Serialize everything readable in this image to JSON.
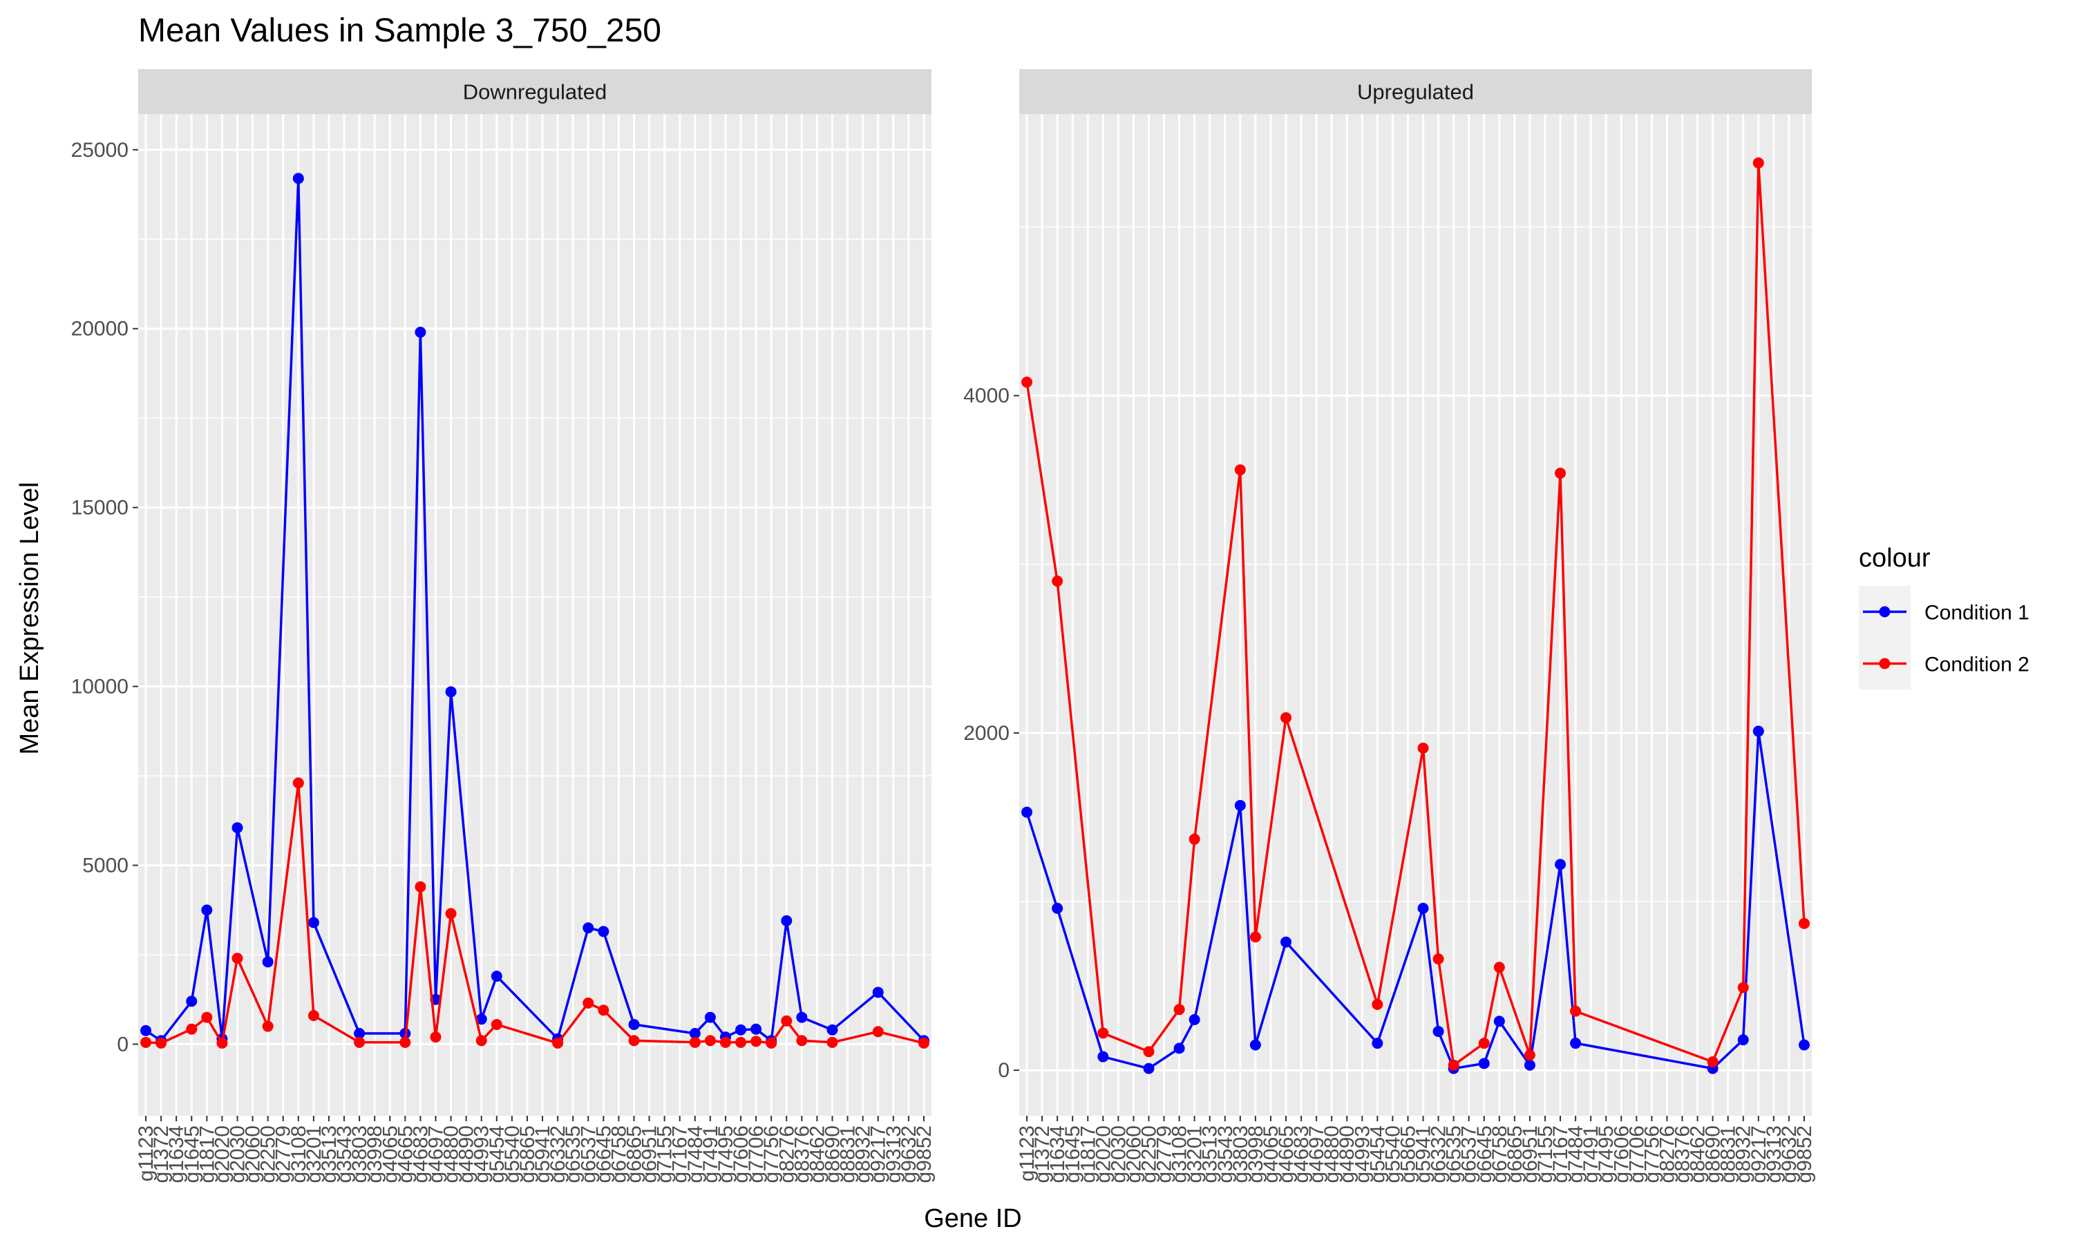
{
  "chart_data": {
    "type": "line",
    "title": "Mean Values in Sample 3_750_250",
    "xlabel": "Gene ID",
    "ylabel": "Mean Expression Level",
    "legend": {
      "title": "colour",
      "placement": "right",
      "entries": [
        {
          "name": "Condition 1",
          "color": "#0000FF"
        },
        {
          "name": "Condition 2",
          "color": "#FF0000"
        }
      ]
    },
    "categories": [
      "g1123",
      "g1372",
      "g1634",
      "g1645",
      "g1817",
      "g2020",
      "g2030",
      "g2060",
      "g2250",
      "g2779",
      "g3108",
      "g3201",
      "g3513",
      "g3543",
      "g3803",
      "g3998",
      "g4065",
      "g4665",
      "g4683",
      "g4697",
      "g4880",
      "g4890",
      "g4993",
      "g5454",
      "g5540",
      "g5865",
      "g5941",
      "g6332",
      "g6535",
      "g6537",
      "g6645",
      "g6758",
      "g6865",
      "g6951",
      "g7155",
      "g7167",
      "g7484",
      "g7491",
      "g7495",
      "g7606",
      "g7706",
      "g7756",
      "g8276",
      "g8376",
      "g8462",
      "g8690",
      "g8831",
      "g8932",
      "g9217",
      "g9313",
      "g9632",
      "g9852"
    ],
    "panels": [
      {
        "strip": "Downregulated",
        "ylim": [
          -2000,
          26000
        ],
        "yticks": [
          0,
          5000,
          10000,
          15000,
          20000,
          25000
        ],
        "series": [
          {
            "name": "Condition 1",
            "color": "#0000FF",
            "points": [
              [
                "g1123",
                380
              ],
              [
                "g1372",
                100
              ],
              [
                "g1645",
                1200
              ],
              [
                "g1817",
                3750
              ],
              [
                "g2020",
                150
              ],
              [
                "g2030",
                6050
              ],
              [
                "g2250",
                2300
              ],
              [
                "g3108",
                24200
              ],
              [
                "g3201",
                3400
              ],
              [
                "g3803",
                300
              ],
              [
                "g4665",
                300
              ],
              [
                "g4683",
                19900
              ],
              [
                "g4697",
                1250
              ],
              [
                "g4880",
                9850
              ],
              [
                "g4993",
                700
              ],
              [
                "g5454",
                1900
              ],
              [
                "g6332",
                150
              ],
              [
                "g6537",
                3250
              ],
              [
                "g6645",
                3150
              ],
              [
                "g6865",
                550
              ],
              [
                "g7484",
                300
              ],
              [
                "g7491",
                750
              ],
              [
                "g7495",
                200
              ],
              [
                "g7606",
                400
              ],
              [
                "g7706",
                420
              ],
              [
                "g7756",
                100
              ],
              [
                "g8276",
                3450
              ],
              [
                "g8376",
                750
              ],
              [
                "g8690",
                400
              ],
              [
                "g9217",
                1450
              ],
              [
                "g9852",
                100
              ]
            ]
          },
          {
            "name": "Condition 2",
            "color": "#FF0000",
            "points": [
              [
                "g1123",
                50
              ],
              [
                "g1372",
                30
              ],
              [
                "g1645",
                420
              ],
              [
                "g1817",
                750
              ],
              [
                "g2020",
                30
              ],
              [
                "g2030",
                2400
              ],
              [
                "g2250",
                500
              ],
              [
                "g3108",
                7300
              ],
              [
                "g3201",
                800
              ],
              [
                "g3803",
                50
              ],
              [
                "g4665",
                50
              ],
              [
                "g4683",
                4400
              ],
              [
                "g4697",
                200
              ],
              [
                "g4880",
                3650
              ],
              [
                "g4993",
                100
              ],
              [
                "g5454",
                550
              ],
              [
                "g6332",
                30
              ],
              [
                "g6537",
                1150
              ],
              [
                "g6645",
                950
              ],
              [
                "g6865",
                100
              ],
              [
                "g7484",
                50
              ],
              [
                "g7491",
                100
              ],
              [
                "g7495",
                50
              ],
              [
                "g7606",
                50
              ],
              [
                "g7706",
                80
              ],
              [
                "g7756",
                30
              ],
              [
                "g8276",
                650
              ],
              [
                "g8376",
                100
              ],
              [
                "g8690",
                50
              ],
              [
                "g9217",
                350
              ],
              [
                "g9852",
                30
              ]
            ]
          }
        ]
      },
      {
        "strip": "Upregulated",
        "ylim": [
          -270,
          5670
        ],
        "yticks": [
          0,
          2000,
          4000
        ],
        "series": [
          {
            "name": "Condition 1",
            "color": "#0000FF",
            "points": [
              [
                "g1123",
                1530
              ],
              [
                "g1634",
                960
              ],
              [
                "g2020",
                80
              ],
              [
                "g2250",
                10
              ],
              [
                "g3108",
                130
              ],
              [
                "g3201",
                300
              ],
              [
                "g3803",
                1570
              ],
              [
                "g3998",
                150
              ],
              [
                "g4665",
                760
              ],
              [
                "g5454",
                160
              ],
              [
                "g5941",
                960
              ],
              [
                "g6332",
                230
              ],
              [
                "g6535",
                10
              ],
              [
                "g6645",
                40
              ],
              [
                "g6758",
                290
              ],
              [
                "g6951",
                30
              ],
              [
                "g7167",
                1220
              ],
              [
                "g7484",
                160
              ],
              [
                "g8690",
                10
              ],
              [
                "g8932",
                180
              ],
              [
                "g9217",
                2010
              ],
              [
                "g9852",
                150
              ]
            ]
          },
          {
            "name": "Condition 2",
            "color": "#FF0000",
            "points": [
              [
                "g1123",
                4080
              ],
              [
                "g1634",
                2900
              ],
              [
                "g2020",
                220
              ],
              [
                "g2250",
                110
              ],
              [
                "g3108",
                360
              ],
              [
                "g3201",
                1370
              ],
              [
                "g3803",
                3560
              ],
              [
                "g3998",
                790
              ],
              [
                "g4665",
                2090
              ],
              [
                "g5454",
                390
              ],
              [
                "g5941",
                1910
              ],
              [
                "g6332",
                660
              ],
              [
                "g6535",
                30
              ],
              [
                "g6645",
                160
              ],
              [
                "g6758",
                610
              ],
              [
                "g6951",
                90
              ],
              [
                "g7167",
                3540
              ],
              [
                "g7484",
                350
              ],
              [
                "g8690",
                50
              ],
              [
                "g8932",
                490
              ],
              [
                "g9217",
                5380
              ],
              [
                "g9852",
                870
              ]
            ]
          }
        ]
      }
    ]
  }
}
